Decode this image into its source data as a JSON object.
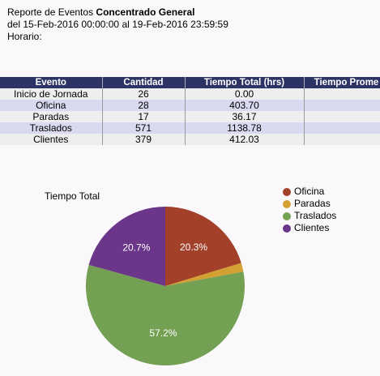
{
  "header": {
    "title_prefix": "Reporte de Eventos",
    "title_bold": "Concentrado General",
    "range": "del 15-Feb-2016 00:00:00 al 19-Feb-2016 23:59:59",
    "schedule": "Horario:"
  },
  "table": {
    "columns": [
      "Evento",
      "Cantidad",
      "Tiempo Total (hrs)",
      "Tiempo Prome"
    ],
    "rows": [
      [
        "Inicio de Jornada",
        "26",
        "0.00"
      ],
      [
        "Oficina",
        "28",
        "403.70"
      ],
      [
        "Paradas",
        "17",
        "36.17"
      ],
      [
        "Traslados",
        "571",
        "1138.78"
      ],
      [
        "Clientes",
        "379",
        "412.03"
      ]
    ]
  },
  "chart_data": {
    "type": "pie",
    "title": "Tiempo Total",
    "categories": [
      "Oficina",
      "Paradas",
      "Traslados",
      "Clientes"
    ],
    "values": [
      20.3,
      1.8,
      57.2,
      20.7
    ],
    "value_labels": [
      "20.3%",
      null,
      "57.2%",
      "20.7%"
    ],
    "colors": [
      "#a2402a",
      "#d4a032",
      "#74a053",
      "#6b358a"
    ]
  }
}
